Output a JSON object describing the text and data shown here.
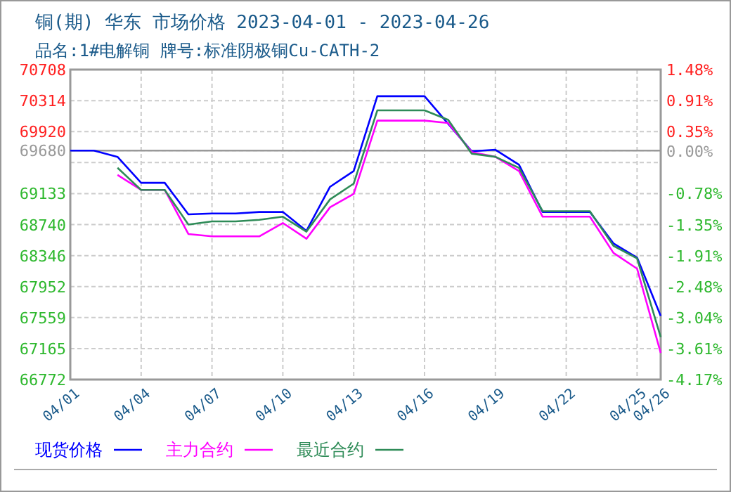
{
  "chart_data": {
    "type": "line",
    "title": "铜(期) 华东 市场价格 2023-04-01 - 2023-04-26",
    "subtitle": "品名:1#电解铜 牌号:标准阴极铜Cu-CATH-2",
    "xlim": [
      "2023-04-01",
      "2023-04-26"
    ],
    "xticks": [
      {
        "value": "2023-04-01",
        "label": "04/01"
      },
      {
        "value": "2023-04-04",
        "label": "04/04"
      },
      {
        "value": "2023-04-07",
        "label": "04/07"
      },
      {
        "value": "2023-04-10",
        "label": "04/10"
      },
      {
        "value": "2023-04-13",
        "label": "04/13"
      },
      {
        "value": "2023-04-16",
        "label": "04/16"
      },
      {
        "value": "2023-04-19",
        "label": "04/19"
      },
      {
        "value": "2023-04-22",
        "label": "04/22"
      },
      {
        "value": "2023-04-25",
        "label": "04/25"
      },
      {
        "value": "2023-04-26",
        "label": "04/26"
      }
    ],
    "ylim": [
      66772,
      70708
    ],
    "yticks": [
      70708,
      70314,
      69920,
      69680,
      {
        "value": 69527,
        "label": null
      },
      69133,
      68740,
      68346,
      67952,
      67559,
      67165,
      66772
    ],
    "y2lim": [
      -4.17,
      1.48
    ],
    "y2ticks": [
      {
        "value": 1.48,
        "label": "1.48%"
      },
      {
        "value": 0.91,
        "label": "0.91%"
      },
      {
        "value": 0.35,
        "label": "0.35%"
      },
      {
        "value": 0,
        "label": "0.00%"
      },
      {
        "value": -0.78,
        "label": "-0.78%"
      },
      {
        "value": -1.35,
        "label": "-1.35%"
      },
      {
        "value": -1.91,
        "label": "-1.91%"
      },
      {
        "value": -2.48,
        "label": "-2.48%"
      },
      {
        "value": -3.04,
        "label": "-3.04%"
      },
      {
        "value": -3.61,
        "label": "-3.61%"
      },
      {
        "value": -4.17,
        "label": "-4.17%"
      }
    ],
    "ref_lines": [
      {
        "axis": "y",
        "value": 69680,
        "color": "#999999"
      }
    ],
    "grid": true,
    "legend": "bottom",
    "marker": "none",
    "line_style": "solid",
    "series": [
      {
        "name": "现货价格",
        "color": "#0000ff",
        "x": [
          "2023-04-01",
          "2023-04-02",
          "2023-04-03",
          "2023-04-04",
          "2023-04-05",
          "2023-04-06",
          "2023-04-07",
          "2023-04-08",
          "2023-04-09",
          "2023-04-10",
          "2023-04-11",
          "2023-04-12",
          "2023-04-13",
          "2023-04-14",
          "2023-04-15",
          "2023-04-16",
          "2023-04-17",
          "2023-04-18",
          "2023-04-19",
          "2023-04-20",
          "2023-04-21",
          "2023-04-22",
          "2023-04-23",
          "2023-04-24",
          "2023-04-25",
          "2023-04-26"
        ],
        "values": [
          69680,
          69680,
          69600,
          69270,
          69270,
          68870,
          68880,
          68880,
          68900,
          68900,
          68660,
          69220,
          69420,
          70370,
          70370,
          70370,
          70020,
          69670,
          69690,
          69500,
          68900,
          68900,
          68900,
          68500,
          68320,
          67580
        ]
      },
      {
        "name": "主力合约",
        "color": "#ff00ff",
        "x": [
          "2023-04-03",
          "2023-04-04",
          "2023-04-05",
          "2023-04-06",
          "2023-04-07",
          "2023-04-08",
          "2023-04-09",
          "2023-04-10",
          "2023-04-11",
          "2023-04-12",
          "2023-04-13",
          "2023-04-14",
          "2023-04-15",
          "2023-04-16",
          "2023-04-17",
          "2023-04-18",
          "2023-04-19",
          "2023-04-20",
          "2023-04-21",
          "2023-04-22",
          "2023-04-23",
          "2023-04-24",
          "2023-04-25",
          "2023-04-26"
        ],
        "values": [
          69370,
          69180,
          69180,
          68620,
          68590,
          68590,
          68590,
          68760,
          68560,
          68960,
          69130,
          70060,
          70060,
          70060,
          70030,
          69660,
          69600,
          69420,
          68840,
          68840,
          68840,
          68380,
          68180,
          67110
        ]
      },
      {
        "name": "最近合约",
        "color": "#2e8b57",
        "x": [
          "2023-04-03",
          "2023-04-04",
          "2023-04-05",
          "2023-04-06",
          "2023-04-07",
          "2023-04-08",
          "2023-04-09",
          "2023-04-10",
          "2023-04-11",
          "2023-04-12",
          "2023-04-13",
          "2023-04-14",
          "2023-04-15",
          "2023-04-16",
          "2023-04-17",
          "2023-04-18",
          "2023-04-19",
          "2023-04-20",
          "2023-04-21",
          "2023-04-22",
          "2023-04-23",
          "2023-04-24",
          "2023-04-25",
          "2023-04-26"
        ],
        "values": [
          69460,
          69180,
          69180,
          68740,
          68780,
          68780,
          68800,
          68840,
          68650,
          69060,
          69260,
          70190,
          70190,
          70190,
          70070,
          69640,
          69600,
          69460,
          68910,
          68910,
          68910,
          68470,
          68310,
          67310
        ]
      }
    ]
  }
}
